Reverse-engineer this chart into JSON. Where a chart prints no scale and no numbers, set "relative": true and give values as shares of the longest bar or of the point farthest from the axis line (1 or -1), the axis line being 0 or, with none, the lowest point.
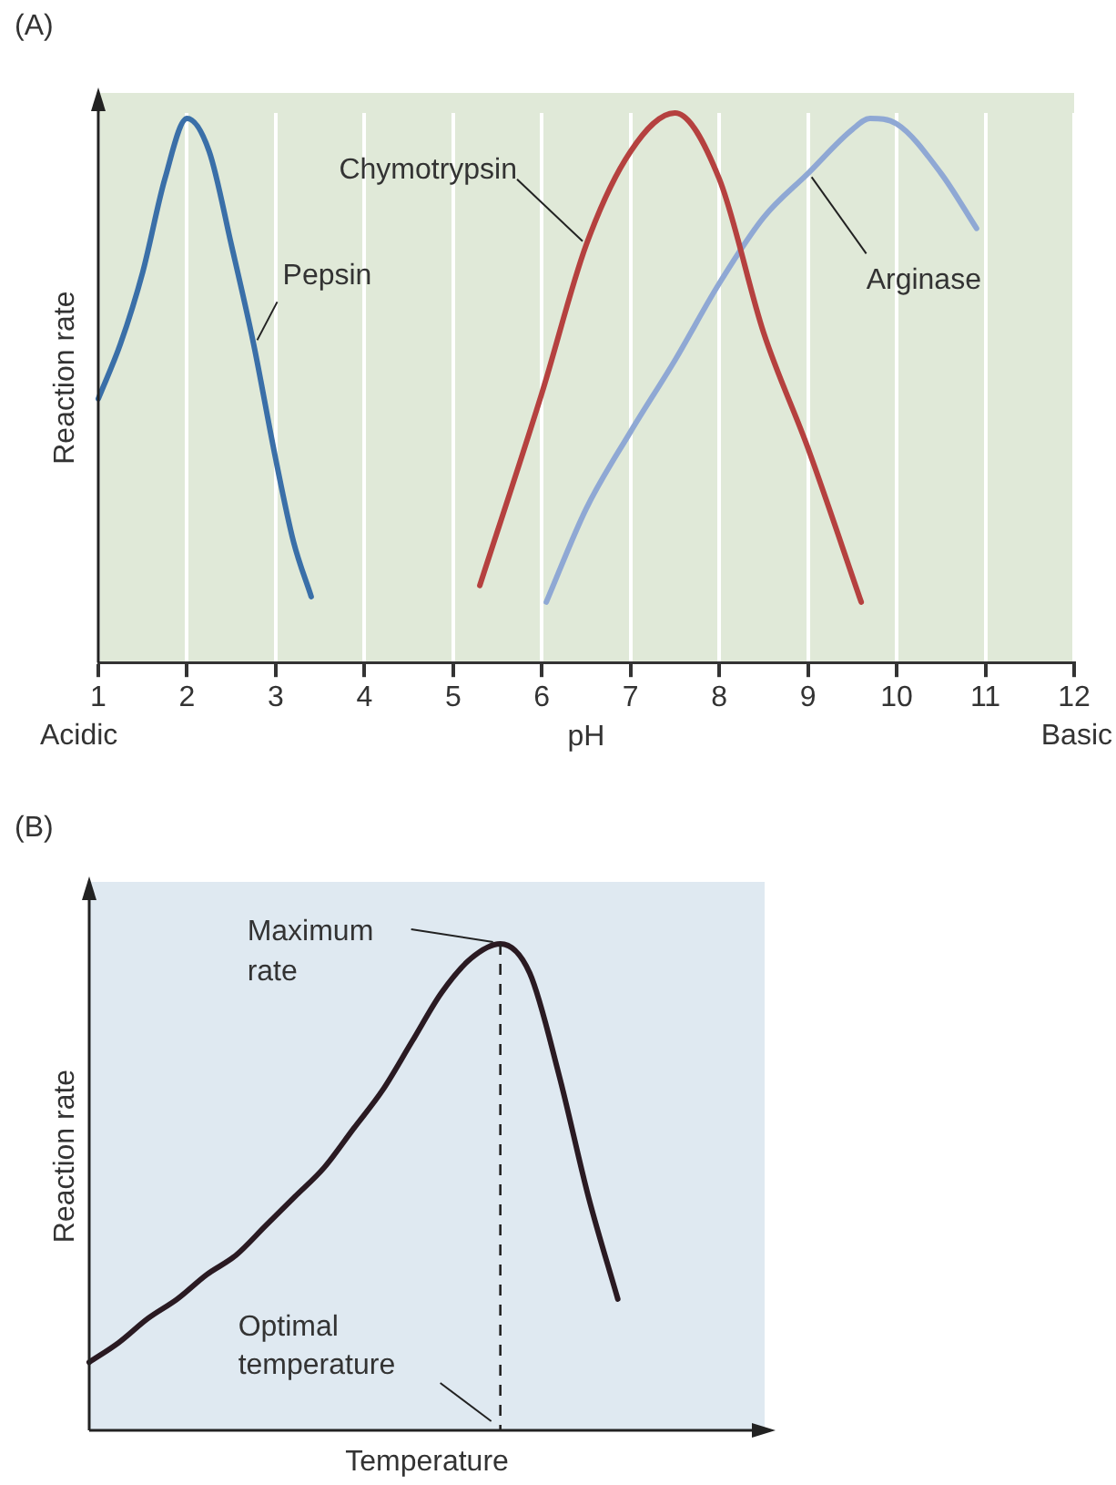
{
  "chart_data": [
    {
      "type": "line",
      "title": "(A)",
      "xlabel": "pH",
      "ylabel": "Reaction rate",
      "relative": true,
      "xlim": [
        1,
        12
      ],
      "xticks": [
        1,
        2,
        3,
        4,
        5,
        6,
        7,
        8,
        9,
        10,
        11,
        12
      ],
      "grid": "x",
      "marker": "none",
      "annotations": [
        "Acidic",
        "Basic"
      ],
      "series": [
        {
          "name": "Pepsin",
          "color": "#3a6fa8",
          "x": [
            1,
            1.25,
            1.5,
            1.75,
            2,
            2.25,
            2.5,
            2.75,
            3,
            3.2,
            3.4
          ],
          "values": [
            0.48,
            0.58,
            0.71,
            0.88,
            0.99,
            0.93,
            0.76,
            0.58,
            0.37,
            0.22,
            0.12
          ]
        },
        {
          "name": "Chymotrypsin",
          "color": "#b5413f",
          "x": [
            5.3,
            6,
            6.5,
            7,
            7.5,
            8,
            8.5,
            9,
            9.6
          ],
          "values": [
            0.14,
            0.49,
            0.76,
            0.93,
            1,
            0.88,
            0.6,
            0.39,
            0.11
          ]
        },
        {
          "name": "Arginase",
          "color": "#8fa8d4",
          "x": [
            6.05,
            6.5,
            7,
            7.5,
            8,
            8.5,
            9,
            9.5,
            9.7,
            10,
            10.5,
            10.9
          ],
          "values": [
            0.11,
            0.28,
            0.42,
            0.55,
            0.69,
            0.81,
            0.89,
            0.97,
            0.99,
            0.98,
            0.89,
            0.79
          ]
        }
      ]
    },
    {
      "type": "line",
      "title": "(B)",
      "xlabel": "Temperature",
      "ylabel": "Reaction rate",
      "relative": true,
      "marker": "none",
      "annotations": [
        "Maximum rate",
        "Optimal temperature"
      ],
      "categories": [
        null,
        null,
        null,
        null,
        null,
        null,
        null,
        null,
        null,
        null,
        null,
        null,
        null,
        null,
        null,
        null,
        null,
        null,
        null,
        null,
        null,
        null,
        null,
        null
      ],
      "series": [
        {
          "color": "#2a1a22",
          "values": [
            0.14,
            0.18,
            0.23,
            0.27,
            0.32,
            0.36,
            0.42,
            0.48,
            0.54,
            0.62,
            0.7,
            0.8,
            0.9,
            0.97,
            1,
            0.94,
            0.73,
            0.48,
            0.27,
            null,
            null,
            null,
            null,
            null
          ]
        }
      ]
    }
  ]
}
